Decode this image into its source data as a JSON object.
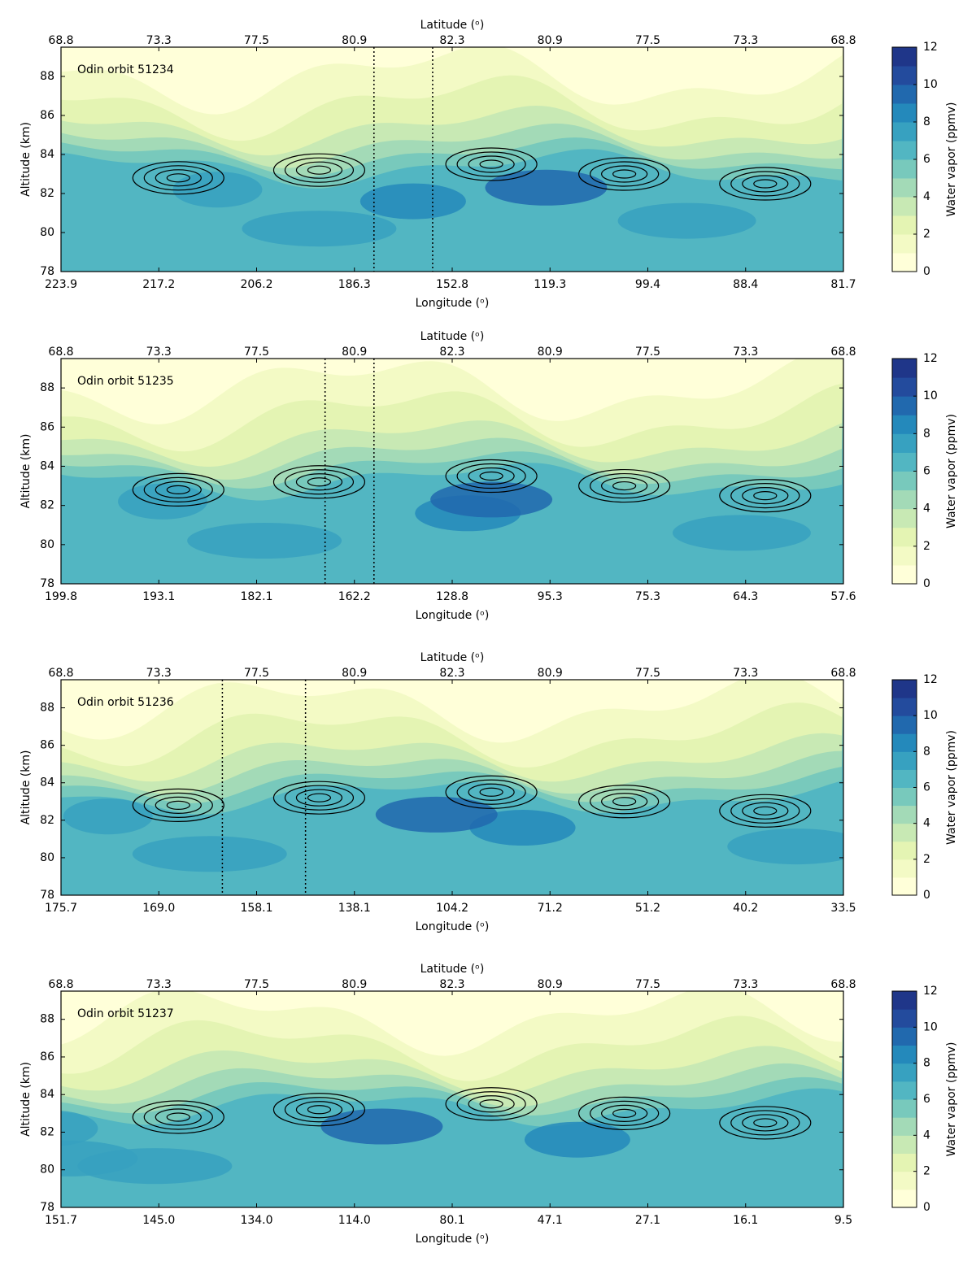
{
  "chart_data": [
    {
      "type": "contour",
      "title": "Odin orbit 51234",
      "xlabel": "Longitude (ᵒ)",
      "x2label": "Latitude (ᵒ)",
      "ylabel": "Altitude (km)",
      "x_categories": [
        "223.9",
        "217.2",
        "206.2",
        "186.3",
        "152.8",
        "119.3",
        "99.4",
        "88.4",
        "81.7"
      ],
      "x2_categories": [
        "68.8",
        "73.3",
        "77.5",
        "80.9",
        "82.3",
        "80.9",
        "77.5",
        "73.3",
        "68.8"
      ],
      "ylim": [
        78,
        89.5
      ],
      "yticks": [
        78,
        80,
        82,
        84,
        86,
        88
      ],
      "colorbar_label": "Water vapor (ppmv)",
      "clim": [
        0,
        12
      ],
      "cticks": [
        0,
        2,
        4,
        6,
        8,
        10,
        12
      ],
      "colors": [
        "#ffffd9",
        "#f3fac5",
        "#e4f4b3",
        "#c8e9b4",
        "#a3dab7",
        "#78c9bc",
        "#52b6c2",
        "#37a1c0",
        "#2489bb",
        "#2169ae",
        "#234b9d",
        "#1f3689"
      ],
      "vlines": [
        3.2,
        3.8
      ]
    },
    {
      "type": "contour",
      "title": "Odin orbit 51235",
      "xlabel": "Longitude (ᵒ)",
      "x2label": "Latitude (ᵒ)",
      "ylabel": "Altitude (km)",
      "x_categories": [
        "199.8",
        "193.1",
        "182.1",
        "162.2",
        "128.8",
        "95.3",
        "75.3",
        "64.3",
        "57.6"
      ],
      "x2_categories": [
        "68.8",
        "73.3",
        "77.5",
        "80.9",
        "82.3",
        "80.9",
        "77.5",
        "73.3",
        "68.8"
      ],
      "ylim": [
        78,
        89.5
      ],
      "yticks": [
        78,
        80,
        82,
        84,
        86,
        88
      ],
      "colorbar_label": "Water vapor (ppmv)",
      "clim": [
        0,
        12
      ],
      "cticks": [
        0,
        2,
        4,
        6,
        8,
        10,
        12
      ],
      "colors": [
        "#ffffd9",
        "#f3fac5",
        "#e4f4b3",
        "#c8e9b4",
        "#a3dab7",
        "#78c9bc",
        "#52b6c2",
        "#37a1c0",
        "#2489bb",
        "#2169ae",
        "#234b9d",
        "#1f3689"
      ],
      "vlines": [
        2.7,
        3.2
      ]
    },
    {
      "type": "contour",
      "title": "Odin orbit 51236",
      "xlabel": "Longitude (ᵒ)",
      "x2label": "Latitude (ᵒ)",
      "ylabel": "Altitude (km)",
      "x_categories": [
        "175.7",
        "169.0",
        "158.1",
        "138.1",
        "104.2",
        "71.2",
        "51.2",
        "40.2",
        "33.5"
      ],
      "x2_categories": [
        "68.8",
        "73.3",
        "77.5",
        "80.9",
        "82.3",
        "80.9",
        "77.5",
        "73.3",
        "68.8"
      ],
      "ylim": [
        78,
        89.5
      ],
      "yticks": [
        78,
        80,
        82,
        84,
        86,
        88
      ],
      "colorbar_label": "Water vapor (ppmv)",
      "clim": [
        0,
        12
      ],
      "cticks": [
        0,
        2,
        4,
        6,
        8,
        10,
        12
      ],
      "colors": [
        "#ffffd9",
        "#f3fac5",
        "#e4f4b3",
        "#c8e9b4",
        "#a3dab7",
        "#78c9bc",
        "#52b6c2",
        "#37a1c0",
        "#2489bb",
        "#2169ae",
        "#234b9d",
        "#1f3689"
      ],
      "vlines": [
        1.65,
        2.5
      ]
    },
    {
      "type": "contour",
      "title": "Odin orbit 51237",
      "xlabel": "Longitude (ᵒ)",
      "x2label": "Latitude (ᵒ)",
      "ylabel": "Altitude (km)",
      "x_categories": [
        "151.7",
        "145.0",
        "134.0",
        "114.0",
        "80.1",
        "47.1",
        "27.1",
        "16.1",
        "9.5"
      ],
      "x2_categories": [
        "68.8",
        "73.3",
        "77.5",
        "80.9",
        "82.3",
        "80.9",
        "77.5",
        "73.3",
        "68.8"
      ],
      "ylim": [
        78,
        89.5
      ],
      "yticks": [
        78,
        80,
        82,
        84,
        86,
        88
      ],
      "colorbar_label": "Water vapor (ppmv)",
      "clim": [
        0,
        12
      ],
      "cticks": [
        0,
        2,
        4,
        6,
        8,
        10,
        12
      ],
      "colors": [
        "#ffffd9",
        "#f3fac5",
        "#e4f4b3",
        "#c8e9b4",
        "#a3dab7",
        "#78c9bc",
        "#52b6c2",
        "#37a1c0",
        "#2489bb",
        "#2169ae",
        "#234b9d",
        "#1f3689"
      ]
    }
  ]
}
